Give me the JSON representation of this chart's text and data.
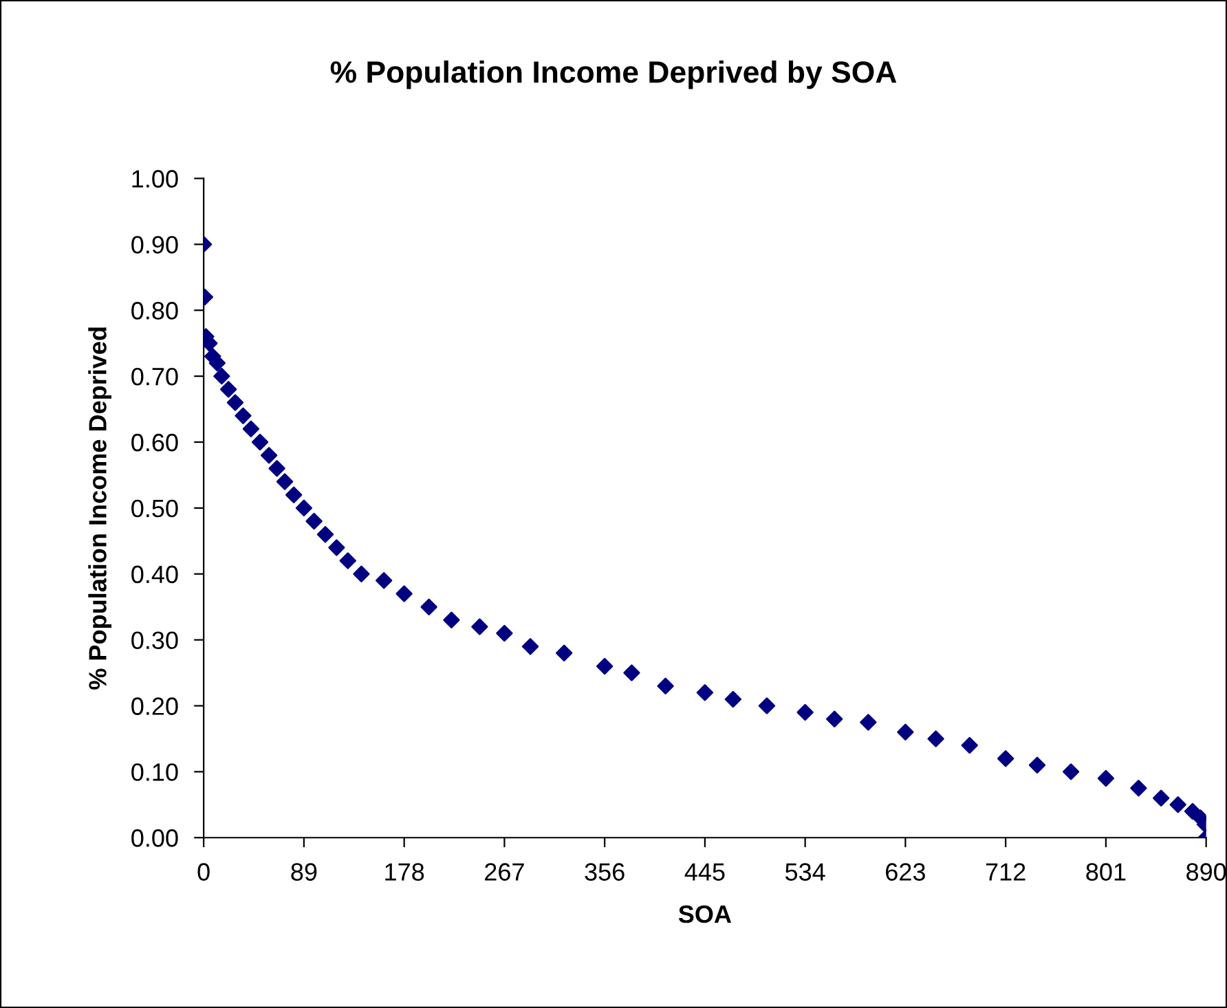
{
  "chart_data": {
    "type": "scatter",
    "title": "% Population Income Deprived by SOA",
    "xlabel": "SOA",
    "ylabel": "% Population Income Deprived",
    "x": [
      0,
      1,
      2,
      5,
      8,
      12,
      16,
      22,
      28,
      35,
      42,
      50,
      58,
      65,
      72,
      80,
      89,
      98,
      108,
      118,
      128,
      140,
      160,
      178,
      200,
      220,
      245,
      267,
      290,
      320,
      356,
      380,
      410,
      445,
      470,
      500,
      534,
      560,
      590,
      623,
      650,
      680,
      712,
      740,
      770,
      801,
      830,
      850,
      865,
      878,
      885,
      889,
      890
    ],
    "series": [
      {
        "color": "#000080",
        "values": [
          0.9,
          0.82,
          0.76,
          0.75,
          0.73,
          0.72,
          0.7,
          0.68,
          0.66,
          0.64,
          0.62,
          0.6,
          0.58,
          0.56,
          0.54,
          0.52,
          0.5,
          0.48,
          0.46,
          0.44,
          0.42,
          0.4,
          0.39,
          0.37,
          0.35,
          0.33,
          0.32,
          0.31,
          0.29,
          0.28,
          0.26,
          0.25,
          0.23,
          0.22,
          0.21,
          0.2,
          0.19,
          0.18,
          0.175,
          0.16,
          0.15,
          0.14,
          0.12,
          0.11,
          0.1,
          0.09,
          0.075,
          0.06,
          0.05,
          0.04,
          0.03,
          0.02,
          0.0
        ]
      }
    ],
    "xlim": [
      0,
      890
    ],
    "xticks": [
      0,
      89,
      178,
      267,
      356,
      445,
      534,
      623,
      712,
      801,
      890
    ],
    "ylim": [
      0,
      1
    ],
    "yticks": [
      {
        "value": 0,
        "label": "0.00"
      },
      {
        "value": 0.1,
        "label": "0.10"
      },
      {
        "value": 0.2,
        "label": "0.20"
      },
      {
        "value": 0.3,
        "label": "0.30"
      },
      {
        "value": 0.4,
        "label": "0.40"
      },
      {
        "value": 0.5,
        "label": "0.50"
      },
      {
        "value": 0.6,
        "label": "0.60"
      },
      {
        "value": 0.7,
        "label": "0.70"
      },
      {
        "value": 0.8,
        "label": "0.80"
      },
      {
        "value": 0.9,
        "label": "0.90"
      },
      {
        "value": 1,
        "label": "1.00"
      }
    ],
    "marker": "diamond",
    "grid": false,
    "legend": false
  }
}
